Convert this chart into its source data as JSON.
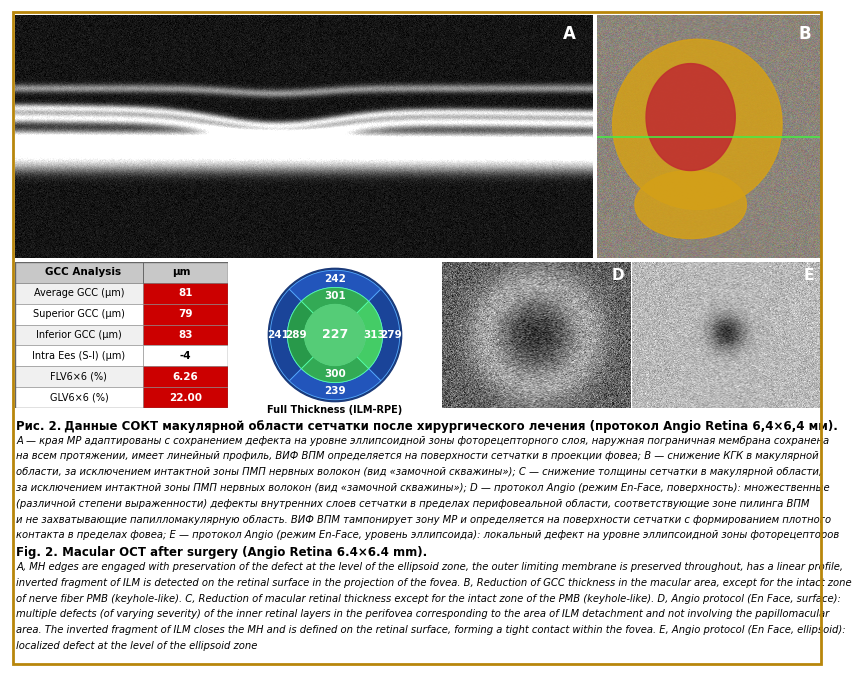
{
  "gcc_rows": [
    {
      "label": "Average GCC (μm)",
      "value": "81",
      "highlight": true
    },
    {
      "label": "Superior GCC (μm)",
      "value": "79",
      "highlight": true
    },
    {
      "label": "Inferior GCC (μm)",
      "value": "83",
      "highlight": true
    },
    {
      "label": "Intra Ees (S-I) (μm)",
      "value": "-4",
      "highlight": false
    },
    {
      "label": "FLV6×6 (%)",
      "value": "6.26",
      "highlight": true
    },
    {
      "label": "GLV6×6 (%)",
      "value": "22.00",
      "highlight": true
    }
  ],
  "gcc_header": [
    "GCC Analysis",
    "μm"
  ],
  "pie_label": "Full Thickness (ILM-RPE)",
  "bg_color": "#ffffff",
  "border_color": "#b8860b",
  "red_color": "#cc0000",
  "title_rus_bold": "Рис. 2.",
  "title_rus_rest": " Данные СОКТ макулярной области сетчатки после хирургического лечения (протокол Angio Retina 6,4×6,4 мм).",
  "caption_rus_lines": [
    "А — края МР адаптированы с сохранением дефекта на уровне эллипсоидной зоны фоторецепторного слоя, наружная пограничная мембрана сохранена",
    "на всем протяжении, имеет линейный профиль, ВИФ ВПМ определяется на поверхности сетчатки в проекции фовеа; В — снижение КГК в макулярной",
    "области, за исключением интактной зоны ПМП нервных волокон (вид «замочной скважины»); С — снижение толщины сетчатки в макулярной области,",
    "за исключением интактной зоны ПМП нервных волокон (вид «замочной скважины»); D — протокол Angio (режим En-Face, поверхность): множественные",
    "(различной степени выраженности) дефекты внутренних слоев сетчатки в пределах перифовеальной области, соответствующие зоне пилинга ВПМ",
    "и не захватывающие папилломакулярную область. ВИФ ВПМ тампонирует зону МР и определяется на поверхности сетчатки с формированием плотного",
    "контакта в пределах фовеа; E — протокол Angio (режим En-Face, уровень эллипсоида): локальный дефект на уровне эллипсоидной зоны фоторецепторов"
  ],
  "title_eng_bold": "Fig. 2.",
  "title_eng_rest": " Macular OCT after surgery (Angio Retina 6.4×6.4 mm).",
  "caption_eng_lines": [
    "A, MH edges are engaged with preservation of the defect at the level of the ellipsoid zone, the outer limiting membrane is preserved throughout, has a linear profile,",
    "inverted fragment of ILM is detected on the retinal surface in the projection of the fovea. B, Reduction of GCC thickness in the macular area, except for the intact zone",
    "of nerve fiber PMB (keyhole-like). C, Reduction of macular retinal thickness except for the intact zone of the PMB (keyhole-like). D, Angio protocol (En Face, surface):",
    "multiple defects (of varying severity) of the inner retinal layers in the perifovea corresponding to the area of ILM detachment and not involving the papillomacular",
    "area. The inverted fragment of ILM closes the MH and is defined on the retinal surface, forming a tight contact within the fovea. E, Angio protocol (En Face, ellipsoid):",
    "localized defect at the level of the ellipsoid zone"
  ]
}
